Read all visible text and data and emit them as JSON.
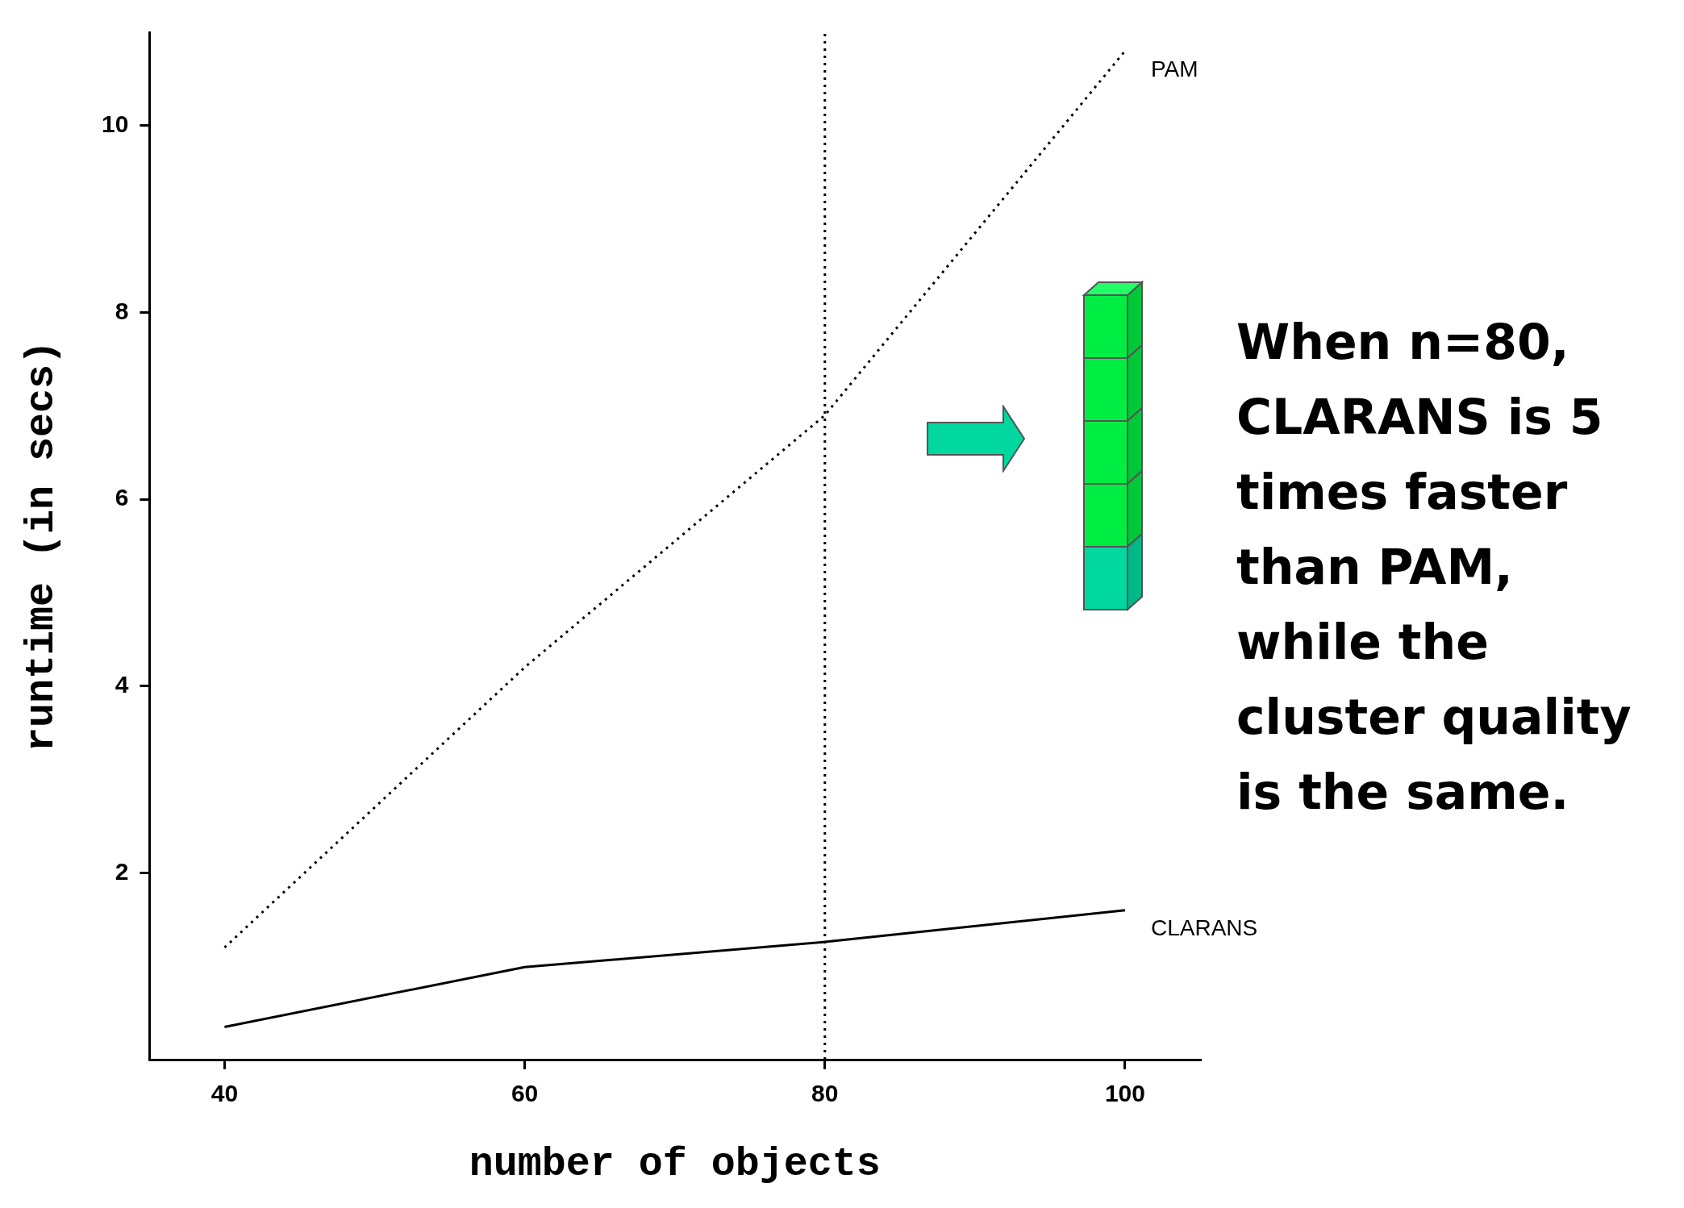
{
  "chart_data": {
    "type": "line",
    "xlabel": "number of objects",
    "ylabel": "runtime (in secs)",
    "x": [
      40,
      60,
      80,
      100
    ],
    "series": [
      {
        "name": "PAM",
        "color": "#000000",
        "values": [
          1.2,
          4.2,
          6.9,
          10.8
        ],
        "line_style": "dotted"
      },
      {
        "name": "CLARANS",
        "color": "#000000",
        "values": [
          0.35,
          0.99,
          1.26,
          1.6
        ],
        "line_style": "solid"
      }
    ],
    "xlim": [
      35,
      105
    ],
    "xticks": [
      40,
      60,
      80,
      100
    ],
    "ylim": [
      0,
      11
    ],
    "yticks": [
      2,
      4,
      6,
      8,
      10
    ],
    "ref_lines": [
      {
        "axis": "x",
        "value": 80,
        "line_style": "dotted",
        "color": "#000000"
      }
    ],
    "annotations": [
      "When n=80, CLARANS is 5 times faster than PAM, while the cluster quality is the same."
    ],
    "grid": false,
    "legend": false,
    "marker": "none"
  }
}
